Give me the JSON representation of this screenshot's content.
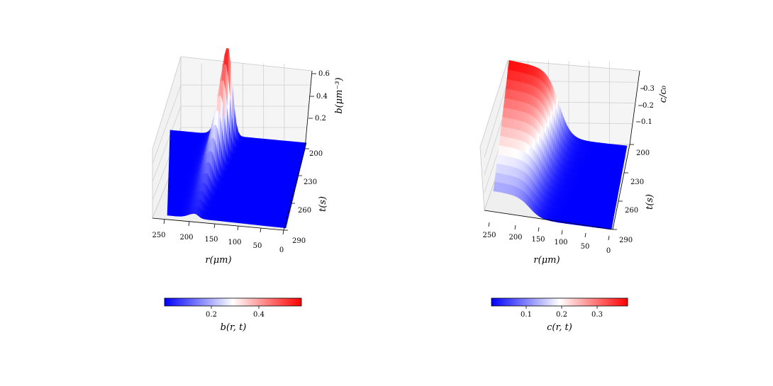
{
  "chart_data": [
    {
      "type": "surface",
      "quantity": "b",
      "x_label": "r(μm)",
      "y_label": "t(s)",
      "z_label": "b(μm⁻³)",
      "x_ticks": [
        "250",
        "200",
        "150",
        "100",
        "50",
        "0"
      ],
      "y_ticks": [
        "200",
        "230",
        "260",
        "290"
      ],
      "z_ticks": [
        "0.2",
        "0.4",
        "0.6"
      ],
      "xlim": [
        0,
        260
      ],
      "ylim": [
        200,
        290
      ],
      "zlim": [
        0,
        0.6
      ],
      "surface_description": "Travelling band: narrow ridge in b that moves from r≈200 (t=290) to r≈150 (t=200); peak height rises from ≈0.03 to ≈0.58 as t decreases; baseline ≈0.01 elsewhere.",
      "ridge": {
        "t": [
          200,
          215,
          230,
          245,
          260,
          275,
          290
        ],
        "r_center": [
          150,
          158,
          166,
          174,
          182,
          191,
          200
        ],
        "peak": [
          0.58,
          0.42,
          0.28,
          0.17,
          0.09,
          0.05,
          0.03
        ]
      },
      "baseline": 0.01,
      "colormap": "bwr",
      "colorbar": {
        "label": "b(r, t)",
        "ticks": [
          "0.2",
          "0.4"
        ],
        "range": [
          0.01,
          0.58
        ]
      }
    },
    {
      "type": "surface",
      "quantity": "c",
      "x_label": "r(μm)",
      "y_label": "t(s)",
      "z_label": "c/c₀",
      "x_ticks": [
        "250",
        "200",
        "150",
        "100",
        "50",
        "0"
      ],
      "y_ticks": [
        "200",
        "230",
        "260",
        "290"
      ],
      "z_ticks": [
        "0.1",
        "0.2",
        "0.3"
      ],
      "xlim": [
        0,
        260
      ],
      "ylim": [
        200,
        290
      ],
      "zlim": [
        0,
        0.38
      ],
      "surface_description": "Sigmoidal front in c: high (≈0.38 at t=200, ≈0.12 at t=290) for large r, dropping to ≈0 below the front located near r≈150–180.",
      "front": {
        "t": [
          200,
          230,
          260,
          290
        ],
        "r_front": [
          150,
          160,
          170,
          180
        ],
        "plateau": [
          0.38,
          0.29,
          0.2,
          0.12
        ]
      },
      "baseline": 0.0,
      "colormap": "bwr",
      "colorbar": {
        "label": "c(r, t)",
        "ticks": [
          "0.1",
          "0.2",
          "0.3"
        ],
        "range": [
          0.0,
          0.38
        ]
      }
    }
  ],
  "colors": {
    "low": "#0000ff",
    "mid": "#ffffff",
    "high": "#ff0000",
    "pane": "#f2f2f2",
    "grid": "#c8c8c8"
  }
}
